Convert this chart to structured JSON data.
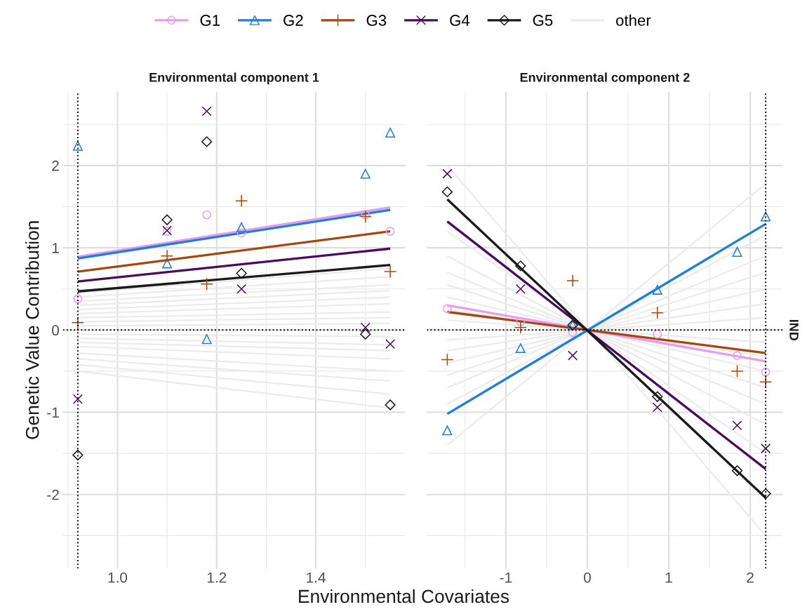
{
  "chart_data": [
    {
      "type": "scatter",
      "title": "Environmental component 1",
      "xlabel": "Environmental Covariates",
      "ylabel": "Genetic Value Contribution",
      "legend": "top",
      "grid": true,
      "xlim": [
        0.89,
        1.58
      ],
      "xticks": [
        {
          "value": 1.0,
          "label": "1.0"
        },
        {
          "value": 1.2,
          "label": "1.2"
        },
        {
          "value": 1.4,
          "label": "1.4"
        }
      ],
      "ylim": [
        -2.9,
        2.9
      ],
      "yticks": [
        -2,
        -1,
        0,
        1,
        2
      ],
      "ref_lines": [
        {
          "axis": "x",
          "value": 0.92,
          "color": "#000000",
          "line_style": "dotted"
        },
        {
          "axis": "y",
          "value": 0,
          "color": "#000000",
          "line_style": "dotted"
        }
      ],
      "series": [
        {
          "type": "line",
          "name": "other",
          "color": "#ebebeb",
          "x": [
            0.92,
            1.55
          ],
          "values": [
            0.45,
            0.75
          ]
        },
        {
          "type": "line",
          "color": "#ebebeb",
          "x": [
            0.92,
            1.55
          ],
          "values": [
            0.4,
            0.65
          ]
        },
        {
          "type": "line",
          "color": "#ebebeb",
          "x": [
            0.92,
            1.55
          ],
          "values": [
            0.35,
            0.55
          ]
        },
        {
          "type": "line",
          "color": "#ebebeb",
          "x": [
            0.92,
            1.55
          ],
          "values": [
            0.3,
            0.48
          ]
        },
        {
          "type": "line",
          "color": "#ebebeb",
          "x": [
            0.92,
            1.55
          ],
          "values": [
            0.25,
            0.4
          ]
        },
        {
          "type": "line",
          "color": "#ebebeb",
          "x": [
            0.92,
            1.55
          ],
          "values": [
            0.2,
            0.32
          ]
        },
        {
          "type": "line",
          "color": "#ebebeb",
          "x": [
            0.92,
            1.55
          ],
          "values": [
            0.15,
            0.22
          ]
        },
        {
          "type": "line",
          "color": "#ebebeb",
          "x": [
            0.92,
            1.55
          ],
          "values": [
            0.1,
            0.15
          ]
        },
        {
          "type": "line",
          "color": "#ebebeb",
          "x": [
            0.92,
            1.55
          ],
          "values": [
            0.05,
            0.08
          ]
        },
        {
          "type": "line",
          "color": "#ebebeb",
          "x": [
            0.92,
            1.55
          ],
          "values": [
            -0.05,
            -0.08
          ]
        },
        {
          "type": "line",
          "color": "#ebebeb",
          "x": [
            0.92,
            1.55
          ],
          "values": [
            -0.1,
            -0.18
          ]
        },
        {
          "type": "line",
          "color": "#ebebeb",
          "x": [
            0.92,
            1.55
          ],
          "values": [
            -0.15,
            -0.25
          ]
        },
        {
          "type": "line",
          "color": "#ebebeb",
          "x": [
            0.92,
            1.55
          ],
          "values": [
            -0.2,
            -0.35
          ]
        },
        {
          "type": "line",
          "color": "#ebebeb",
          "x": [
            0.92,
            1.55
          ],
          "values": [
            -0.28,
            -0.5
          ]
        },
        {
          "type": "line",
          "color": "#ebebeb",
          "x": [
            0.92,
            1.55
          ],
          "values": [
            -0.35,
            -0.62
          ]
        },
        {
          "type": "line",
          "color": "#ebebeb",
          "x": [
            0.92,
            1.55
          ],
          "values": [
            -0.42,
            -0.78
          ]
        },
        {
          "type": "line",
          "color": "#ebebeb",
          "x": [
            0.92,
            1.55
          ],
          "values": [
            -0.5,
            -0.95
          ]
        },
        {
          "type": "line",
          "color": "#e99ced",
          "x": [
            0.92,
            1.55
          ],
          "values": [
            0.89,
            1.49
          ]
        },
        {
          "type": "line",
          "color": "#1f7fd8",
          "x": [
            0.92,
            1.55
          ],
          "values": [
            0.87,
            1.46
          ]
        },
        {
          "type": "line",
          "color": "#a6470f",
          "x": [
            0.92,
            1.55
          ],
          "values": [
            0.71,
            1.2
          ]
        },
        {
          "type": "line",
          "color": "#4b0a5e",
          "x": [
            0.92,
            1.55
          ],
          "values": [
            0.59,
            0.99
          ]
        },
        {
          "type": "line",
          "color": "#1a1a1a",
          "x": [
            0.92,
            1.55
          ],
          "values": [
            0.47,
            0.79
          ]
        },
        {
          "name": "G1",
          "marker": "circle",
          "color": "#e99ced",
          "x": [
            0.92,
            1.1,
            1.18,
            1.25,
            1.5,
            1.55
          ],
          "values": [
            0.38,
            1.2,
            1.4,
            1.18,
            1.4,
            1.2
          ]
        },
        {
          "name": "G2",
          "marker": "triangle",
          "color": "#1f7fd8",
          "x": [
            0.92,
            1.1,
            1.18,
            1.25,
            1.5,
            1.55
          ],
          "values": [
            2.24,
            0.81,
            -0.11,
            1.25,
            1.9,
            2.4
          ]
        },
        {
          "name": "G3",
          "marker": "plus",
          "color": "#a6470f",
          "x": [
            0.92,
            1.1,
            1.18,
            1.25,
            1.5,
            1.55
          ],
          "values": [
            0.09,
            0.9,
            0.56,
            1.57,
            1.38,
            0.71
          ]
        },
        {
          "name": "G4",
          "marker": "cross",
          "color": "#4b0a5e",
          "x": [
            0.92,
            1.1,
            1.18,
            1.25,
            1.5,
            1.55
          ],
          "values": [
            -0.84,
            1.21,
            2.66,
            0.5,
            0.03,
            -0.17
          ]
        },
        {
          "name": "G5",
          "marker": "diamond",
          "color": "#1a1a1a",
          "x": [
            0.92,
            1.1,
            1.18,
            1.25,
            1.5,
            1.55
          ],
          "values": [
            -1.52,
            1.34,
            2.29,
            0.69,
            -0.05,
            -0.91
          ]
        }
      ]
    },
    {
      "type": "scatter",
      "title": "Environmental component 2",
      "grid": true,
      "tick_labels": "x",
      "annotations": [
        "IND"
      ],
      "xlim": [
        -1.97,
        2.4
      ],
      "xticks": [
        -1,
        0,
        1,
        2
      ],
      "ylim": [
        -2.9,
        2.9
      ],
      "yticks": [
        -2,
        -1,
        0,
        1,
        2
      ],
      "ref_lines": [
        {
          "axis": "x",
          "value": 2.19,
          "color": "#000000",
          "line_style": "dotted"
        },
        {
          "axis": "y",
          "value": 0,
          "color": "#000000",
          "line_style": "dotted"
        }
      ],
      "series": [
        {
          "type": "line",
          "color": "#ebebeb",
          "x": [
            -1.72,
            2.19
          ],
          "values": [
            2.0,
            -2.5
          ]
        },
        {
          "type": "line",
          "color": "#ebebeb",
          "x": [
            -1.72,
            2.19
          ],
          "values": [
            1.2,
            -1.5
          ]
        },
        {
          "type": "line",
          "color": "#ebebeb",
          "x": [
            -1.72,
            2.19
          ],
          "values": [
            0.9,
            -1.15
          ]
        },
        {
          "type": "line",
          "color": "#ebebeb",
          "x": [
            -1.72,
            2.19
          ],
          "values": [
            0.7,
            -0.9
          ]
        },
        {
          "type": "line",
          "color": "#ebebeb",
          "x": [
            -1.72,
            2.19
          ],
          "values": [
            0.55,
            -0.7
          ]
        },
        {
          "type": "line",
          "color": "#ebebeb",
          "x": [
            -1.72,
            2.19
          ],
          "values": [
            0.4,
            -0.5
          ]
        },
        {
          "type": "line",
          "color": "#ebebeb",
          "x": [
            -1.72,
            2.19
          ],
          "values": [
            0.25,
            -0.32
          ]
        },
        {
          "type": "line",
          "color": "#ebebeb",
          "x": [
            -1.72,
            2.19
          ],
          "values": [
            0.12,
            -0.15
          ]
        },
        {
          "type": "line",
          "color": "#ebebeb",
          "x": [
            -1.72,
            2.19
          ],
          "values": [
            -0.12,
            0.15
          ]
        },
        {
          "type": "line",
          "color": "#ebebeb",
          "x": [
            -1.72,
            2.19
          ],
          "values": [
            -0.25,
            0.32
          ]
        },
        {
          "type": "line",
          "color": "#ebebeb",
          "x": [
            -1.72,
            2.19
          ],
          "values": [
            -0.4,
            0.5
          ]
        },
        {
          "type": "line",
          "color": "#ebebeb",
          "x": [
            -1.72,
            2.19
          ],
          "values": [
            -0.55,
            0.7
          ]
        },
        {
          "type": "line",
          "color": "#ebebeb",
          "x": [
            -1.72,
            2.19
          ],
          "values": [
            -0.7,
            0.9
          ]
        },
        {
          "type": "line",
          "color": "#ebebeb",
          "x": [
            -1.72,
            2.19
          ],
          "values": [
            -0.9,
            1.15
          ]
        },
        {
          "type": "line",
          "color": "#ebebeb",
          "x": [
            -1.72,
            2.19
          ],
          "values": [
            -1.4,
            1.78
          ]
        },
        {
          "type": "line",
          "color": "#e99ced",
          "x": [
            -1.72,
            2.19
          ],
          "values": [
            0.3,
            -0.38
          ]
        },
        {
          "type": "line",
          "color": "#1f7fd8",
          "x": [
            -1.72,
            2.19
          ],
          "values": [
            -1.02,
            1.29
          ]
        },
        {
          "type": "line",
          "color": "#a6470f",
          "x": [
            -1.72,
            2.19
          ],
          "values": [
            0.22,
            -0.28
          ]
        },
        {
          "type": "line",
          "color": "#4b0a5e",
          "x": [
            -1.72,
            2.19
          ],
          "values": [
            1.32,
            -1.69
          ]
        },
        {
          "type": "line",
          "color": "#1a1a1a",
          "x": [
            -1.72,
            2.19
          ],
          "values": [
            1.59,
            -2.04
          ]
        },
        {
          "marker": "circle",
          "color": "#e99ced",
          "x": [
            -1.72,
            -0.82,
            -0.18,
            0.86,
            1.84,
            2.19
          ],
          "values": [
            0.26,
            0.1,
            -0.03,
            -0.05,
            -0.31,
            -0.51
          ]
        },
        {
          "marker": "triangle",
          "color": "#1f7fd8",
          "x": [
            -1.72,
            -0.82,
            -0.18,
            0.86,
            1.84,
            2.19
          ],
          "values": [
            -1.22,
            -0.22,
            0.06,
            0.49,
            0.95,
            1.38
          ]
        },
        {
          "marker": "plus",
          "color": "#a6470f",
          "x": [
            -1.72,
            -0.82,
            -0.18,
            0.86,
            1.84,
            2.19
          ],
          "values": [
            -0.36,
            0.03,
            0.6,
            0.21,
            -0.5,
            -0.63
          ]
        },
        {
          "marker": "cross",
          "color": "#4b0a5e",
          "x": [
            -1.72,
            -0.82,
            -0.18,
            0.86,
            1.84,
            2.19
          ],
          "values": [
            1.9,
            0.5,
            -0.31,
            -0.94,
            -1.16,
            -1.44
          ]
        },
        {
          "marker": "diamond",
          "color": "#1a1a1a",
          "x": [
            -1.72,
            -0.82,
            -0.18,
            0.86,
            1.84,
            2.19
          ],
          "values": [
            1.68,
            0.78,
            0.06,
            -0.81,
            -1.71,
            -1.99
          ]
        }
      ]
    }
  ]
}
